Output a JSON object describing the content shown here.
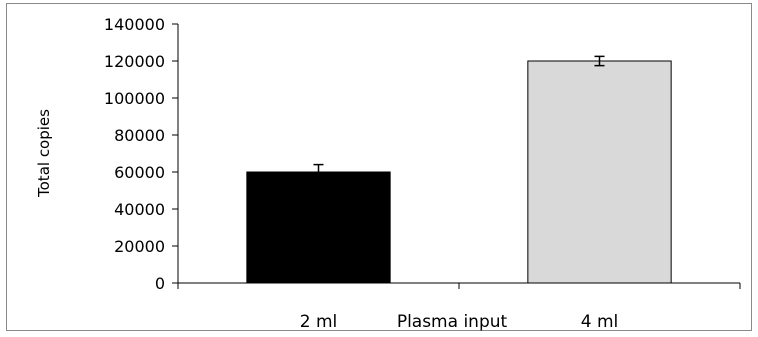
{
  "chart_data": {
    "type": "bar",
    "categories": [
      "2 ml",
      "4 ml"
    ],
    "values": [
      60000,
      120000
    ],
    "errors": [
      4000,
      2500
    ],
    "colors": [
      "#000000",
      "#d9d9d9"
    ],
    "title": "",
    "xlabel": "Plasma input",
    "ylabel": "Total copies",
    "ylim": [
      0,
      140000
    ],
    "yticks": [
      0,
      20000,
      40000,
      60000,
      80000,
      100000,
      120000,
      140000
    ],
    "grid": false,
    "legend": "none"
  }
}
